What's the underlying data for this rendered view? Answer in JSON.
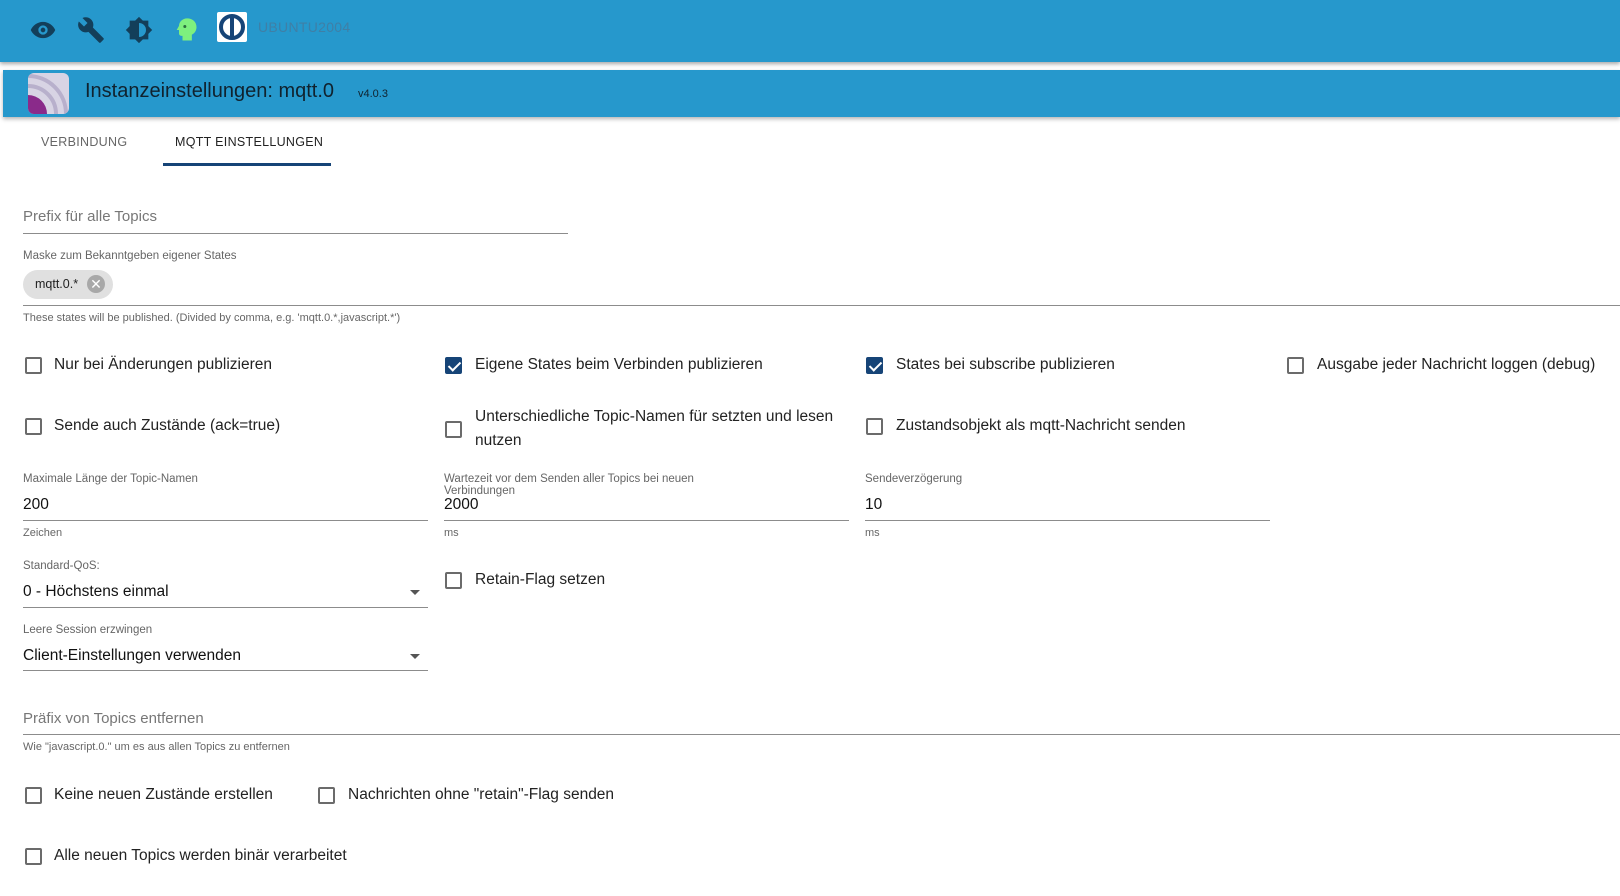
{
  "topbar": {
    "icons": [
      "eye-icon",
      "wrench-icon",
      "brightness-icon",
      "expert-mode-icon",
      "iobroker-logo"
    ],
    "host": "UBUNTU2004"
  },
  "header": {
    "title": "Instanzeinstellungen: mqtt.0",
    "version": "v4.0.3"
  },
  "tabs": [
    {
      "label": "VERBINDUNG",
      "active": false
    },
    {
      "label": "MQTT EINSTELLUNGEN",
      "active": true
    }
  ],
  "form": {
    "prefix": {
      "placeholder": "Prefix für alle Topics",
      "value": ""
    },
    "mask": {
      "label": "Maske zum Bekanntgeben eigener States",
      "chip": "mqtt.0.*",
      "help": "These states will be published. (Divided by comma, e.g. 'mqtt.0.*,javascript.*')"
    },
    "checkboxes": [
      {
        "label": "Nur bei Änderungen publizieren",
        "checked": false
      },
      {
        "label": "Eigene States beim Verbinden publizieren",
        "checked": true
      },
      {
        "label": "States bei subscribe publizieren",
        "checked": true
      },
      {
        "label": "Ausgabe jeder Nachricht loggen (debug)",
        "checked": false
      },
      {
        "label": "Sende auch Zustände (ack=true)",
        "checked": false
      },
      {
        "label": "Unterschiedliche Topic-Namen für setzten und lesen nutzen",
        "checked": false
      },
      {
        "label": "Zustandsobjekt als mqtt-Nachricht senden",
        "checked": false
      },
      {
        "label": "Retain-Flag setzen",
        "checked": false
      },
      {
        "label": "Keine neuen Zustände erstellen",
        "checked": false
      },
      {
        "label": "Nachrichten ohne \"retain\"-Flag senden",
        "checked": false
      },
      {
        "label": "Alle neuen Topics werden binär verarbeitet",
        "checked": false
      }
    ],
    "maxLength": {
      "label": "Maximale Länge der Topic-Namen",
      "value": "200",
      "unit": "Zeichen"
    },
    "waitTime": {
      "label": "Wartezeit vor dem Senden aller Topics bei neuen Verbindungen",
      "value": "2000",
      "unit": "ms"
    },
    "sendDelay": {
      "label": "Sendeverzögerung",
      "value": "10",
      "unit": "ms"
    },
    "qos": {
      "label": "Standard-QoS:",
      "value": "0 - Höchstens einmal"
    },
    "session": {
      "label": "Leere Session erzwingen",
      "value": "Client-Einstellungen verwenden"
    },
    "removePrefix": {
      "placeholder": "Präfix von Topics entfernen",
      "value": "",
      "help": "Wie \"javascript.0.\" um es aus allen Topics zu entfernen"
    }
  },
  "colors": {
    "primary": "#2698cc",
    "accent": "#164477"
  }
}
